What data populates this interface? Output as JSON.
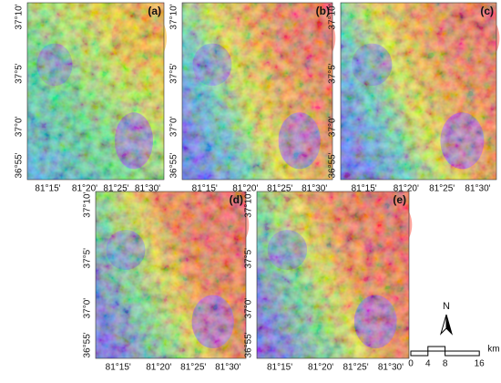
{
  "panels": [
    {
      "label": "(a)",
      "y_ticks": [
        "37°10'",
        "37°5'",
        "37°0'",
        "36°55'"
      ],
      "x_ticks": [
        "81°15'",
        "81°20'",
        "81°25'",
        "81°30'"
      ]
    },
    {
      "label": "(b)",
      "y_ticks": [
        "37°10'",
        "37°5'",
        "37°0'",
        "36°55'"
      ],
      "x_ticks": [
        "81°15'",
        "81°20'",
        "81°25'",
        "81°30'"
      ]
    },
    {
      "label": "(c)",
      "y_ticks": [
        "37°10'",
        "37°5'",
        "37°0'",
        "36°55'"
      ],
      "x_ticks": [
        "81°15'",
        "81°20'",
        "81°25'",
        "81°30'"
      ]
    },
    {
      "label": "(d)",
      "y_ticks": [
        "37°10'",
        "37°5'",
        "37°0'",
        "36°55'"
      ],
      "x_ticks": [
        "81°15'",
        "81°20'",
        "81°25'",
        "81°30'"
      ]
    },
    {
      "label": "(e)",
      "y_ticks": [
        "37°10'",
        "37°5'",
        "37°0'",
        "36°55'"
      ],
      "x_ticks": [
        "81°15'",
        "81°20'",
        "81°25'",
        "81°30'"
      ]
    }
  ],
  "north": "N",
  "scale_bar": {
    "ticks": [
      0,
      4,
      8,
      16
    ],
    "unit": "km"
  }
}
